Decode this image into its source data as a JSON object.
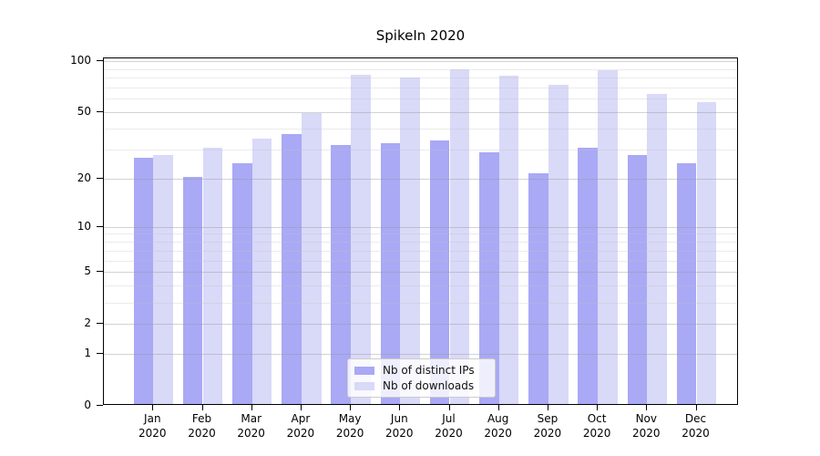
{
  "chart_data": {
    "type": "bar",
    "title": "SpikeIn 2020",
    "categories": [
      "Jan 2020",
      "Feb 2020",
      "Mar 2020",
      "Apr 2020",
      "May 2020",
      "Jun 2020",
      "Jul 2020",
      "Aug 2020",
      "Sep 2020",
      "Oct 2020",
      "Nov 2020",
      "Dec 2020"
    ],
    "x_tick_months": [
      "Jan",
      "Feb",
      "Mar",
      "Apr",
      "May",
      "Jun",
      "Jul",
      "Aug",
      "Sep",
      "Oct",
      "Nov",
      "Dec"
    ],
    "x_tick_year": "2020",
    "series": [
      {
        "key": "distinct-ips",
        "name": "Nb of distinct IPs",
        "color": "#a9a9f5",
        "values": [
          26,
          20,
          24,
          36,
          31,
          32,
          33,
          28,
          21,
          30,
          27,
          24
        ]
      },
      {
        "key": "downloads",
        "name": "Nb of downloads",
        "color": "#d9d9f8",
        "values": [
          27,
          30,
          34,
          48,
          81,
          78,
          87,
          80,
          71,
          86,
          63,
          56
        ]
      }
    ],
    "xlabel": "",
    "ylabel": "",
    "yscale": "log1p",
    "ylim": [
      0,
      104
    ],
    "y_major_ticks": [
      0,
      1,
      2,
      5,
      10,
      20,
      50,
      100
    ],
    "y_tick_labels": [
      "0",
      "1",
      "2",
      "5",
      "10",
      "20",
      "50",
      "100"
    ],
    "y_minor_gridlines": [
      3,
      4,
      6,
      7,
      8,
      9,
      30,
      40,
      60,
      70,
      80,
      90
    ],
    "grid": true,
    "legend_position": "lower center",
    "background_color": "#ffffff",
    "spine_color": "#000000"
  }
}
